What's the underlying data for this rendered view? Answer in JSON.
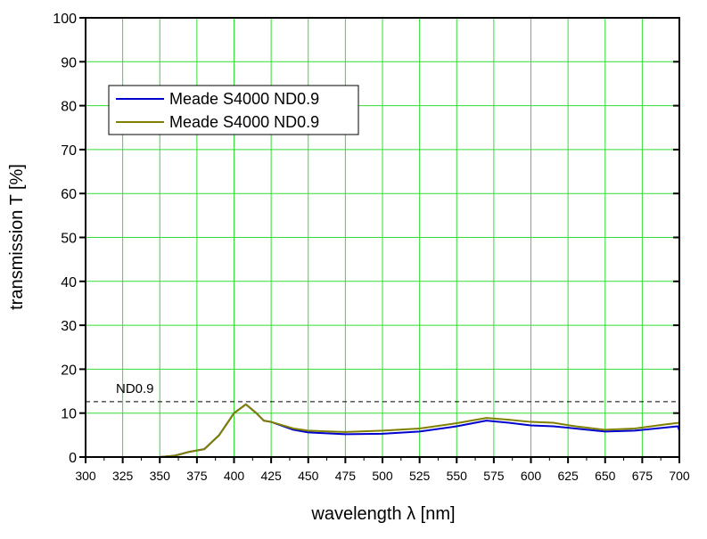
{
  "chart_data": {
    "type": "line",
    "xlabel": "wavelength λ [nm]",
    "ylabel": "transmission T [%]",
    "xlim": [
      300,
      700
    ],
    "ylim": [
      0,
      100
    ],
    "xticks": [
      300,
      325,
      350,
      375,
      400,
      425,
      450,
      475,
      500,
      525,
      550,
      575,
      600,
      625,
      650,
      675,
      700
    ],
    "yticks": [
      0,
      10,
      20,
      30,
      40,
      50,
      60,
      70,
      80,
      90,
      100
    ],
    "grid": true,
    "legend_position": "top-left",
    "reference_line": {
      "label": "ND0.9",
      "y": 12.6
    },
    "series": [
      {
        "name": "Meade S4000 ND0.9",
        "color": "#0000cc",
        "x": [
          300,
          350,
          360,
          370,
          380,
          390,
          400,
          408,
          415,
          420,
          425,
          440,
          450,
          475,
          500,
          525,
          550,
          570,
          585,
          600,
          615,
          630,
          650,
          670,
          690,
          699,
          700
        ],
        "y": [
          0,
          0,
          0.3,
          1.2,
          1.8,
          5,
          10,
          12,
          10,
          8.3,
          8,
          6.2,
          5.6,
          5.2,
          5.3,
          5.8,
          7,
          8.3,
          7.8,
          7.2,
          7,
          6.5,
          5.8,
          6,
          6.7,
          7,
          6
        ]
      },
      {
        "name": "Meade S4000 ND0.9",
        "color": "#808000",
        "x": [
          300,
          350,
          360,
          370,
          380,
          390,
          400,
          408,
          415,
          420,
          425,
          440,
          450,
          475,
          500,
          525,
          550,
          570,
          585,
          600,
          615,
          630,
          650,
          670,
          690,
          700
        ],
        "y": [
          0,
          0,
          0.3,
          1.2,
          1.8,
          5,
          10,
          12,
          10,
          8.3,
          8,
          6.5,
          6,
          5.7,
          6,
          6.5,
          7.7,
          8.9,
          8.5,
          8,
          7.8,
          7,
          6.2,
          6.5,
          7.4,
          7.8
        ]
      }
    ]
  }
}
